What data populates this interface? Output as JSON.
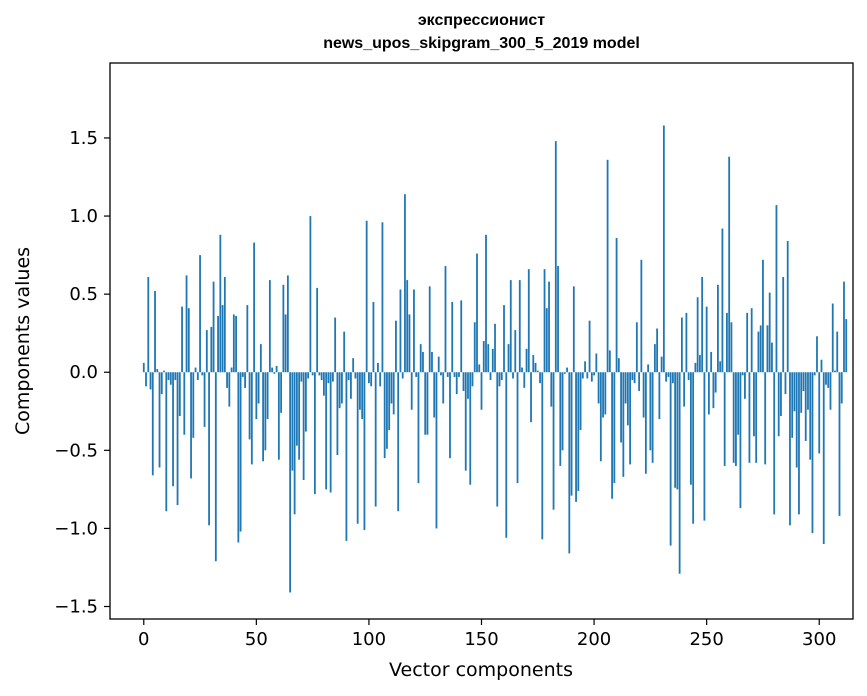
{
  "chart_data": {
    "type": "bar",
    "title": "экспрессионист",
    "subtitle": "news_upos_skipgram_300_5_2019 model",
    "xlabel": "Vector components",
    "ylabel": "Components values",
    "xlim": [
      -15,
      315
    ],
    "ylim": [
      -1.58,
      1.98
    ],
    "xticks": [
      0,
      50,
      100,
      150,
      200,
      250,
      300
    ],
    "xtick_labels": [
      "0",
      "50",
      "100",
      "150",
      "200",
      "250",
      "300"
    ],
    "yticks": [
      -1.5,
      -1.0,
      -0.5,
      0.0,
      0.5,
      1.0,
      1.5
    ],
    "ytick_labels": [
      "−1.5",
      "−1.0",
      "−0.5",
      "0.0",
      "0.5",
      "1.0",
      "1.5"
    ],
    "bar_color": "#1f77b4",
    "grid": false,
    "values": [
      0.06,
      -0.09,
      0.61,
      -0.11,
      -0.66,
      0.52,
      0.02,
      -0.61,
      -0.14,
      0.01,
      -0.89,
      -0.05,
      -0.08,
      -0.73,
      -0.05,
      -0.85,
      -0.28,
      0.42,
      -0.4,
      0.62,
      0.41,
      -0.68,
      -0.42,
      0.03,
      -0.05,
      0.75,
      -0.02,
      -0.35,
      0.27,
      -0.98,
      0.29,
      0.58,
      -1.21,
      0.36,
      0.88,
      0.43,
      0.61,
      -0.1,
      -0.22,
      0.03,
      0.37,
      0.36,
      -1.09,
      -1.02,
      -0.03,
      -0.1,
      0.43,
      -0.43,
      -0.59,
      0.83,
      -0.3,
      -0.2,
      0.18,
      -0.57,
      -0.5,
      -0.3,
      0.59,
      0.03,
      -0.01,
      0.04,
      -0.56,
      -0.26,
      0.56,
      0.37,
      0.62,
      -1.41,
      -0.63,
      -0.91,
      -0.47,
      -0.56,
      -0.06,
      -0.69,
      -0.38,
      -0.04,
      1.0,
      -0.02,
      -0.78,
      0.54,
      -0.02,
      -0.05,
      -0.15,
      -0.75,
      -0.07,
      -0.77,
      -0.06,
      0.35,
      -0.53,
      -0.23,
      -0.2,
      0.26,
      -1.08,
      -0.05,
      -0.17,
      0.09,
      -0.04,
      -0.97,
      -0.24,
      -0.3,
      -1.01,
      0.97,
      -0.07,
      -0.09,
      0.45,
      -0.86,
      0.06,
      -0.09,
      0.96,
      -0.55,
      -0.49,
      -0.37,
      -0.2,
      -0.27,
      0.33,
      -0.89,
      0.53,
      -0.04,
      1.14,
      0.59,
      0.37,
      -0.24,
      0.53,
      -0.03,
      -0.71,
      0.18,
      0.13,
      -0.4,
      -0.4,
      0.55,
      0.13,
      -0.29,
      -1.0,
      0.1,
      -0.02,
      -0.2,
      0.68,
      -0.03,
      -0.55,
      0.45,
      -0.03,
      -0.14,
      -0.03,
      0.46,
      -0.12,
      -0.63,
      -0.17,
      -0.72,
      -0.09,
      0.32,
      0.76,
      0.05,
      -0.24,
      0.2,
      0.88,
      0.18,
      -0.05,
      0.15,
      0.31,
      -0.86,
      -0.09,
      -0.05,
      0.43,
      -1.06,
      0.18,
      0.59,
      -0.04,
      0.27,
      -0.71,
      0.59,
      0.03,
      -0.1,
      0.15,
      0.66,
      -0.32,
      0.11,
      0.06,
      0.01,
      -0.07,
      -1.07,
      0.66,
      0.41,
      0.58,
      -0.22,
      -0.88,
      1.48,
      0.68,
      -0.6,
      -0.5,
      -0.01,
      0.03,
      -1.16,
      -0.79,
      0.55,
      -0.83,
      -0.76,
      -0.37,
      -0.04,
      0.07,
      -0.04,
      0.33,
      -0.06,
      -0.02,
      0.12,
      -0.2,
      -0.57,
      -0.29,
      -0.27,
      1.36,
      0.14,
      -0.81,
      -0.71,
      0.86,
      0.09,
      -0.45,
      -0.67,
      -0.2,
      -0.34,
      -0.59,
      -0.05,
      -0.07,
      0.32,
      -0.12,
      0.72,
      -0.29,
      -0.65,
      0.05,
      -0.5,
      -0.58,
      0.18,
      0.28,
      -0.3,
      0.1,
      1.58,
      -0.06,
      -0.03,
      -1.11,
      -0.07,
      -0.74,
      -0.75,
      -1.29,
      0.35,
      -0.22,
      0.38,
      -0.05,
      -0.72,
      -0.97,
      0.06,
      0.48,
      0.11,
      0.61,
      -0.95,
      0.42,
      -0.27,
      0.13,
      -0.23,
      -0.13,
      0.56,
      0.07,
      0.92,
      -0.6,
      0.38,
      1.38,
      0.32,
      -0.58,
      -0.6,
      -0.4,
      -0.87,
      -0.02,
      -0.17,
      0.38,
      -0.58,
      0.41,
      -0.41,
      -0.58,
      0.26,
      0.3,
      0.72,
      -0.59,
      0.3,
      0.51,
      0.19,
      -0.91,
      1.07,
      -0.41,
      -0.28,
      0.61,
      -0.14,
      0.84,
      -0.98,
      -0.42,
      -0.25,
      -0.61,
      -0.91,
      -0.26,
      -0.12,
      -0.44,
      -0.24,
      -0.56,
      -1.03,
      -0.02,
      0.23,
      -0.52,
      0.08,
      -1.1,
      -0.08,
      -0.1,
      -0.24,
      0.44,
      0.01,
      0.26,
      -0.92,
      -0.2,
      0.58,
      0.34
    ]
  }
}
